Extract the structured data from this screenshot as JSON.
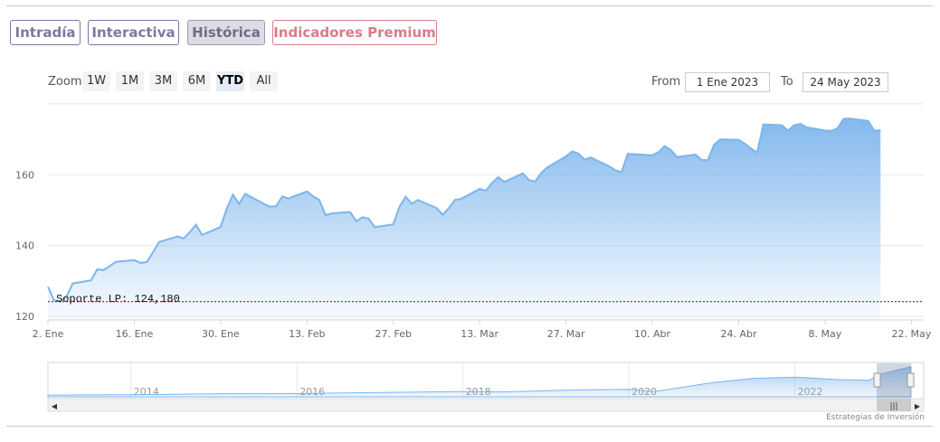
{
  "tabs": [
    {
      "label": "Intradía",
      "state": "normal"
    },
    {
      "label": "Interactiva",
      "state": "normal"
    },
    {
      "label": "Histórica",
      "state": "active"
    },
    {
      "label": "Indicadores Premium",
      "state": "premium"
    }
  ],
  "zoom": {
    "label": "Zoom",
    "buttons": [
      "1W",
      "1M",
      "3M",
      "6M",
      "YTD",
      "All"
    ],
    "selected": "YTD"
  },
  "range": {
    "from_label": "From",
    "from_value": "1 Ene 2023",
    "to_label": "To",
    "to_value": "24 May 2023"
  },
  "credit": "Estrategias de Inversión",
  "colors": {
    "line": "#7cb5ec",
    "fill_top": "#7cb5ec",
    "support": "#8b0000",
    "accent": "#7d78a6",
    "premium": "#d97c86"
  },
  "chart_data": {
    "type": "area",
    "ylim": [
      119,
      180
    ],
    "yticks": [
      120,
      140,
      160
    ],
    "xlim": [
      "2023-01-02",
      "2023-05-24"
    ],
    "xtick_labels": [
      {
        "date": "2023-01-02",
        "label": "2. Ene"
      },
      {
        "date": "2023-01-16",
        "label": "16. Ene"
      },
      {
        "date": "2023-01-30",
        "label": "30. Ene"
      },
      {
        "date": "2023-02-13",
        "label": "13. Feb"
      },
      {
        "date": "2023-02-27",
        "label": "27. Feb"
      },
      {
        "date": "2023-03-13",
        "label": "13. Mar"
      },
      {
        "date": "2023-03-27",
        "label": "27. Mar"
      },
      {
        "date": "2023-04-10",
        "label": "10. Abr"
      },
      {
        "date": "2023-04-24",
        "label": "24. Abr"
      },
      {
        "date": "2023-05-08",
        "label": "8. May"
      },
      {
        "date": "2023-05-22",
        "label": "22. May"
      }
    ],
    "grid": true,
    "support": {
      "label": "Soporte LP: 124,180",
      "value": 124.18
    },
    "series": [
      {
        "values": [
          [
            "2023-01-02",
            128.4
          ],
          [
            "2023-01-03",
            124.5
          ],
          [
            "2023-01-04",
            124.3
          ],
          [
            "2023-01-05",
            125.5
          ],
          [
            "2023-01-06",
            129.3
          ],
          [
            "2023-01-09",
            130.2
          ],
          [
            "2023-01-10",
            133.3
          ],
          [
            "2023-01-11",
            133.1
          ],
          [
            "2023-01-12",
            134.2
          ],
          [
            "2023-01-13",
            135.4
          ],
          [
            "2023-01-16",
            135.9
          ],
          [
            "2023-01-17",
            135.1
          ],
          [
            "2023-01-18",
            135.3
          ],
          [
            "2023-01-19",
            138.0
          ],
          [
            "2023-01-20",
            141.0
          ],
          [
            "2023-01-23",
            142.6
          ],
          [
            "2023-01-24",
            142.0
          ],
          [
            "2023-01-25",
            143.8
          ],
          [
            "2023-01-26",
            145.9
          ],
          [
            "2023-01-27",
            143.0
          ],
          [
            "2023-01-30",
            145.3
          ],
          [
            "2023-01-31",
            150.5
          ],
          [
            "2023-02-01",
            154.4
          ],
          [
            "2023-02-02",
            151.8
          ],
          [
            "2023-02-03",
            154.6
          ],
          [
            "2023-02-06",
            151.8
          ],
          [
            "2023-02-07",
            151.0
          ],
          [
            "2023-02-08",
            151.1
          ],
          [
            "2023-02-09",
            153.9
          ],
          [
            "2023-02-10",
            153.3
          ],
          [
            "2023-02-13",
            155.3
          ],
          [
            "2023-02-14",
            153.9
          ],
          [
            "2023-02-15",
            152.9
          ],
          [
            "2023-02-16",
            148.6
          ],
          [
            "2023-02-17",
            149.1
          ],
          [
            "2023-02-20",
            149.5
          ],
          [
            "2023-02-21",
            146.9
          ],
          [
            "2023-02-22",
            148.0
          ],
          [
            "2023-02-23",
            147.6
          ],
          [
            "2023-02-24",
            145.2
          ],
          [
            "2023-02-27",
            146.0
          ],
          [
            "2023-02-28",
            151.0
          ],
          [
            "2023-03-01",
            153.8
          ],
          [
            "2023-03-02",
            151.8
          ],
          [
            "2023-03-03",
            152.9
          ],
          [
            "2023-03-06",
            150.6
          ],
          [
            "2023-03-07",
            148.7
          ],
          [
            "2023-03-08",
            150.6
          ],
          [
            "2023-03-09",
            152.9
          ],
          [
            "2023-03-10",
            153.2
          ],
          [
            "2023-03-13",
            156.0
          ],
          [
            "2023-03-14",
            155.5
          ],
          [
            "2023-03-15",
            157.7
          ],
          [
            "2023-03-16",
            159.3
          ],
          [
            "2023-03-17",
            158.0
          ],
          [
            "2023-03-20",
            160.4
          ],
          [
            "2023-03-21",
            158.5
          ],
          [
            "2023-03-22",
            158.1
          ],
          [
            "2023-03-23",
            160.6
          ],
          [
            "2023-03-24",
            162.1
          ],
          [
            "2023-03-27",
            165.2
          ],
          [
            "2023-03-28",
            166.6
          ],
          [
            "2023-03-29",
            166.0
          ],
          [
            "2023-03-30",
            164.3
          ],
          [
            "2023-03-31",
            164.9
          ],
          [
            "2023-04-03",
            162.4
          ],
          [
            "2023-04-04",
            161.3
          ],
          [
            "2023-04-05",
            160.7
          ],
          [
            "2023-04-06",
            165.9
          ],
          [
            "2023-04-10",
            165.5
          ],
          [
            "2023-04-11",
            166.4
          ],
          [
            "2023-04-12",
            168.1
          ],
          [
            "2023-04-13",
            167.0
          ],
          [
            "2023-04-14",
            165.0
          ],
          [
            "2023-04-17",
            165.7
          ],
          [
            "2023-04-18",
            164.2
          ],
          [
            "2023-04-19",
            164.1
          ],
          [
            "2023-04-20",
            168.5
          ],
          [
            "2023-04-21",
            170.0
          ],
          [
            "2023-04-24",
            169.9
          ],
          [
            "2023-04-25",
            168.8
          ],
          [
            "2023-04-26",
            167.4
          ],
          [
            "2023-04-27",
            166.3
          ],
          [
            "2023-04-28",
            174.2
          ],
          [
            "2023-05-01",
            174.0
          ],
          [
            "2023-05-02",
            172.5
          ],
          [
            "2023-05-03",
            174.0
          ],
          [
            "2023-05-04",
            174.4
          ],
          [
            "2023-05-05",
            173.4
          ],
          [
            "2023-05-08",
            172.5
          ],
          [
            "2023-05-09",
            172.4
          ],
          [
            "2023-05-10",
            173.1
          ],
          [
            "2023-05-11",
            175.8
          ],
          [
            "2023-05-12",
            175.9
          ],
          [
            "2023-05-15",
            175.2
          ],
          [
            "2023-05-16",
            172.4
          ],
          [
            "2023-05-17",
            172.6
          ]
        ]
      }
    ],
    "navigator": {
      "xtick_labels": [
        "2014",
        "2016",
        "2018",
        "2020",
        "2022"
      ],
      "values": [
        [
          "2013",
          10
        ],
        [
          "2014",
          12
        ],
        [
          "2015",
          17
        ],
        [
          "2016",
          18
        ],
        [
          "2017",
          24
        ],
        [
          "2018",
          30
        ],
        [
          "2018.5",
          28
        ],
        [
          "2019",
          35
        ],
        [
          "2019.5",
          40
        ],
        [
          "2020",
          42
        ],
        [
          "2020.3",
          30
        ],
        [
          "2020.7",
          58
        ],
        [
          "2021",
          80
        ],
        [
          "2021.5",
          105
        ],
        [
          "2022",
          112
        ],
        [
          "2022.5",
          98
        ],
        [
          "2022.9",
          94
        ],
        [
          "2023",
          125
        ],
        [
          "2023.4",
          172
        ]
      ]
    }
  }
}
